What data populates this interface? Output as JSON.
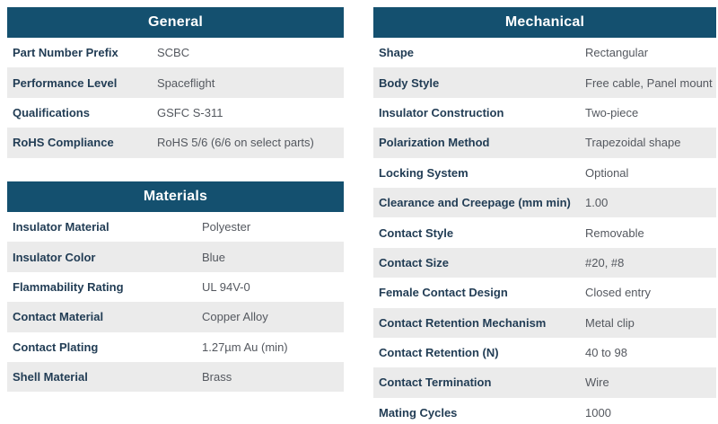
{
  "colors": {
    "accent": "#14506F",
    "stripe": "#EBEBEB",
    "label": "#223D55",
    "value": "#54585F",
    "header_text": "#FFFFFF"
  },
  "tables": {
    "general": {
      "title": "General",
      "rows": [
        {
          "label": "Part Number Prefix",
          "value": "SCBC"
        },
        {
          "label": "Performance Level",
          "value": "Spaceflight"
        },
        {
          "label": "Qualifications",
          "value": "GSFC S-311"
        },
        {
          "label": "RoHS Compliance",
          "value": "RoHS 5/6 (6/6 on select parts)"
        }
      ]
    },
    "materials": {
      "title": "Materials",
      "rows": [
        {
          "label": "Insulator Material",
          "value": "Polyester"
        },
        {
          "label": "Insulator Color",
          "value": "Blue"
        },
        {
          "label": "Flammability Rating",
          "value": "UL 94V-0"
        },
        {
          "label": "Contact Material",
          "value": "Copper Alloy"
        },
        {
          "label": "Contact Plating",
          "value": "1.27µm Au (min)"
        },
        {
          "label": "Shell Material",
          "value": "Brass"
        }
      ]
    },
    "mechanical": {
      "title": "Mechanical",
      "rows": [
        {
          "label": "Shape",
          "value": "Rectangular"
        },
        {
          "label": "Body Style",
          "value": "Free cable, Panel mount"
        },
        {
          "label": "Insulator Construction",
          "value": "Two-piece"
        },
        {
          "label": "Polarization Method",
          "value": "Trapezoidal shape"
        },
        {
          "label": "Locking System",
          "value": "Optional"
        },
        {
          "label": "Clearance and Creepage (mm min)",
          "value": "1.00"
        },
        {
          "label": "Contact Style",
          "value": "Removable"
        },
        {
          "label": "Contact Size",
          "value": "#20, #8"
        },
        {
          "label": "Female Contact Design",
          "value": "Closed entry"
        },
        {
          "label": "Contact Retention Mechanism",
          "value": "Metal clip"
        },
        {
          "label": "Contact Retention (N)",
          "value": "40 to 98"
        },
        {
          "label": "Contact Termination",
          "value": "Wire"
        },
        {
          "label": "Mating Cycles",
          "value": "1000"
        }
      ]
    }
  }
}
